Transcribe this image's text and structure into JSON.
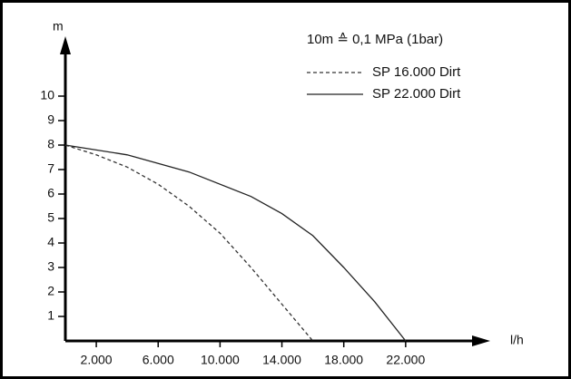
{
  "chart_data": {
    "type": "line",
    "y_label": "m",
    "x_label": "l/h",
    "annotation": "10m ≙ 0,1 MPa (1bar)",
    "xlim": [
      0,
      26000
    ],
    "ylim": [
      0,
      12
    ],
    "xticks": [
      {
        "value": 2000,
        "label": "2.000"
      },
      {
        "value": 6000,
        "label": "6.000"
      },
      {
        "value": 10000,
        "label": "10.000"
      },
      {
        "value": 14000,
        "label": "14.000"
      },
      {
        "value": 18000,
        "label": "18.000"
      },
      {
        "value": 22000,
        "label": "22.000"
      }
    ],
    "yticks": [
      1,
      2,
      3,
      4,
      5,
      6,
      7,
      8,
      9,
      10
    ],
    "series": [
      {
        "name": "SP 16.000 Dirt",
        "color": "#333333",
        "dash": true,
        "x": [
          0,
          2000,
          4000,
          6000,
          8000,
          10000,
          12000,
          14000,
          16000
        ],
        "values": [
          8,
          7.6,
          7.1,
          6.4,
          5.5,
          4.4,
          3.0,
          1.5,
          0
        ]
      },
      {
        "name": "SP 22.000 Dirt",
        "color": "#222222",
        "dash": false,
        "x": [
          0,
          4000,
          8000,
          12000,
          14000,
          16000,
          18000,
          20000,
          22000
        ],
        "values": [
          8,
          7.6,
          6.9,
          5.9,
          5.2,
          4.3,
          3.0,
          1.6,
          0
        ]
      }
    ]
  }
}
